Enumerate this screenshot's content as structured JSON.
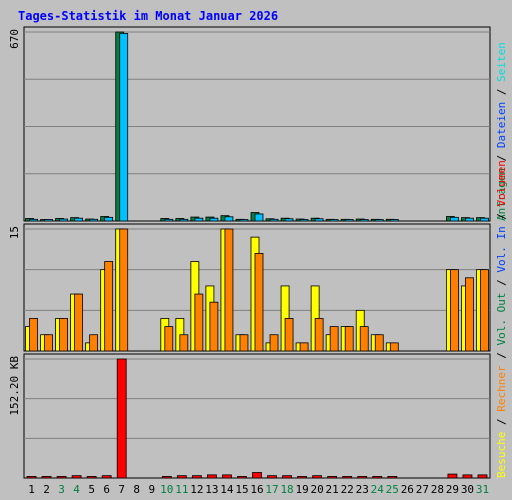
{
  "chart_data": {
    "type": "bar",
    "title": "Tages-Statistik im Monat Januar 2026",
    "days": [
      "1",
      "2",
      "3",
      "4",
      "5",
      "6",
      "7",
      "8",
      "9",
      "10",
      "11",
      "12",
      "13",
      "14",
      "15",
      "16",
      "17",
      "18",
      "19",
      "20",
      "21",
      "22",
      "23",
      "24",
      "25",
      "26",
      "27",
      "28",
      "29",
      "30",
      "31"
    ],
    "weekend_days": [
      "3",
      "4",
      "10",
      "11",
      "17",
      "18",
      "24",
      "25",
      "31"
    ],
    "panels": [
      {
        "name": "hits-files",
        "ymax_label": "670",
        "ymax": 670,
        "series": [
          {
            "name": "Anfragen",
            "color": "#008040",
            "values": [
              9,
              5,
              9,
              12,
              7,
              16,
              670,
              0,
              0,
              9,
              9,
              14,
              14,
              19,
              6,
              30,
              8,
              10,
              7,
              10,
              6,
              6,
              7,
              6,
              6,
              0,
              0,
              0,
              16,
              12,
              12
            ]
          },
          {
            "name": "Dateien",
            "color": "#00c0ff",
            "values": [
              6,
              4,
              7,
              10,
              6,
              13,
              665,
              0,
              0,
              6,
              6,
              10,
              10,
              15,
              5,
              25,
              6,
              8,
              5,
              8,
              5,
              5,
              5,
              5,
              5,
              0,
              0,
              0,
              13,
              10,
              10
            ]
          },
          {
            "name": "Seiten",
            "color": "#00e0e0",
            "values": [
              0,
              0,
              0,
              0,
              0,
              0,
              0,
              0,
              0,
              0,
              0,
              0,
              0,
              0,
              0,
              0,
              0,
              0,
              0,
              0,
              0,
              0,
              0,
              0,
              0,
              0,
              0,
              0,
              0,
              0,
              0
            ]
          }
        ]
      },
      {
        "name": "visits-sites",
        "ymax_label": "15",
        "ymax": 15,
        "series": [
          {
            "name": "Besuche",
            "color": "#ffff00",
            "values": [
              3,
              2,
              4,
              7,
              1,
              10,
              15,
              0,
              0,
              4,
              4,
              11,
              8,
              15,
              2,
              14,
              1,
              8,
              1,
              8,
              2,
              3,
              5,
              2,
              1,
              0,
              0,
              0,
              10,
              8,
              10
            ]
          },
          {
            "name": "Rechner",
            "color": "#ff8000",
            "values": [
              4,
              2,
              4,
              7,
              2,
              11,
              15,
              0,
              0,
              3,
              2,
              7,
              6,
              15,
              2,
              12,
              2,
              4,
              1,
              4,
              3,
              3,
              3,
              2,
              1,
              0,
              0,
              0,
              10,
              9,
              10
            ]
          }
        ]
      },
      {
        "name": "kbytes",
        "ymax_label": "152.20 KB",
        "ymax": 152.2,
        "series": [
          {
            "name": "Volumen",
            "color": "#ff0000",
            "values": [
              2,
              2,
              2,
              3,
              2,
              3,
              152.2,
              0,
              0,
              2,
              3,
              3,
              4,
              4,
              2,
              7,
              3,
              3,
              2,
              3,
              2,
              2,
              2,
              2,
              2,
              0,
              0,
              0,
              5,
              4,
              4
            ]
          }
        ]
      }
    ],
    "legend": {
      "top": [
        {
          "text": "Anfragen",
          "color": "#008040"
        },
        {
          "text": "Dateien",
          "color": "#0040ff"
        },
        {
          "text": "Seiten",
          "color": "#00e0e0"
        }
      ],
      "middle": [
        {
          "text": "Besuche",
          "color": "#ffff00"
        },
        {
          "text": "Rechner",
          "color": "#ff8000"
        },
        {
          "text": "Vol. Out",
          "color": "#008040"
        },
        {
          "text": "Vol. In",
          "color": "#0040ff"
        },
        {
          "text": "Volumen",
          "color": "#ff0000"
        }
      ]
    }
  }
}
